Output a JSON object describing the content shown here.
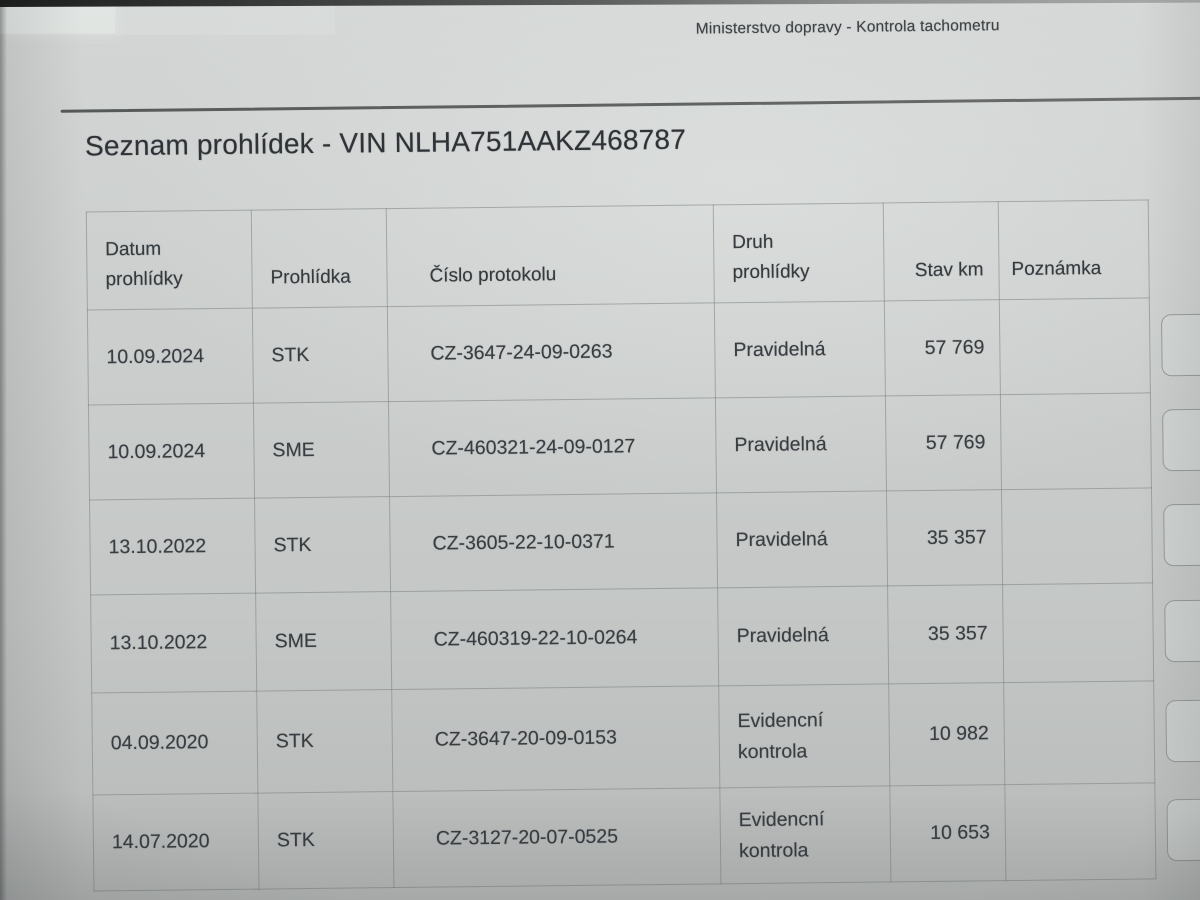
{
  "header": {
    "title": "Ministerstvo dopravy - Kontrola tachometru"
  },
  "page": {
    "title": "Seznam prohlídek - VIN NLHA751AAKZ468787"
  },
  "table": {
    "columns": [
      "Datum prohlídky",
      "Prohlídka",
      "Číslo protokolu",
      "Druh prohlídky",
      "Stav km",
      "Poznámka"
    ],
    "rows": [
      {
        "datum": "10.09.2024",
        "prohlidka": "STK",
        "cislo_protokolu": "CZ-3647-24-09-0263",
        "druh_prohlidky": "Pravidelná",
        "stav_km": "57 769",
        "poznamka": ""
      },
      {
        "datum": "10.09.2024",
        "prohlidka": "SME",
        "cislo_protokolu": "CZ-460321-24-09-0127",
        "druh_prohlidky": "Pravidelná",
        "stav_km": "57 769",
        "poznamka": ""
      },
      {
        "datum": "13.10.2022",
        "prohlidka": "STK",
        "cislo_protokolu": "CZ-3605-22-10-0371",
        "druh_prohlidky": "Pravidelná",
        "stav_km": "35 357",
        "poznamka": ""
      },
      {
        "datum": "13.10.2022",
        "prohlidka": "SME",
        "cislo_protokolu": "CZ-460319-22-10-0264",
        "druh_prohlidky": "Pravidelná",
        "stav_km": "35 357",
        "poznamka": ""
      },
      {
        "datum": "04.09.2020",
        "prohlidka": "STK",
        "cislo_protokolu": "CZ-3647-20-09-0153",
        "druh_prohlidky": "Evidencní kontrola",
        "stav_km": "10 982",
        "poznamka": ""
      },
      {
        "datum": "14.07.2020",
        "prohlidka": "STK",
        "cislo_protokolu": "CZ-3127-20-07-0525",
        "druh_prohlidky": "Evidencní kontrola",
        "stav_km": "10 653",
        "poznamka": ""
      }
    ]
  },
  "colors": {
    "paper": "#c9cccb",
    "ink": "#383d41",
    "table_border": "#7a807d"
  }
}
